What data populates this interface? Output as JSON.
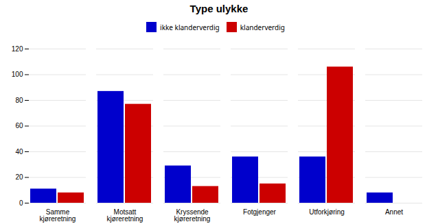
{
  "chart_data": {
    "type": "bar",
    "title": "Type ulykke",
    "categories": [
      "Samme\nkjøreretning",
      "Motsatt\nkjøreretning",
      "Kryssende\nkjøreretning",
      "Fotgjenger",
      "Utforkjøring",
      "Annet"
    ],
    "series": [
      {
        "name": "ikke klanderverdig",
        "color": "#0000cc",
        "values": [
          11,
          87,
          29,
          36,
          36,
          8
        ]
      },
      {
        "name": "klanderverdig",
        "color": "#cc0000",
        "values": [
          8,
          77,
          13,
          15,
          106,
          0
        ]
      }
    ],
    "ylim": [
      0,
      120
    ],
    "yticks": [
      0,
      20,
      40,
      60,
      80,
      100,
      120
    ],
    "grid": true,
    "legend": "top"
  }
}
